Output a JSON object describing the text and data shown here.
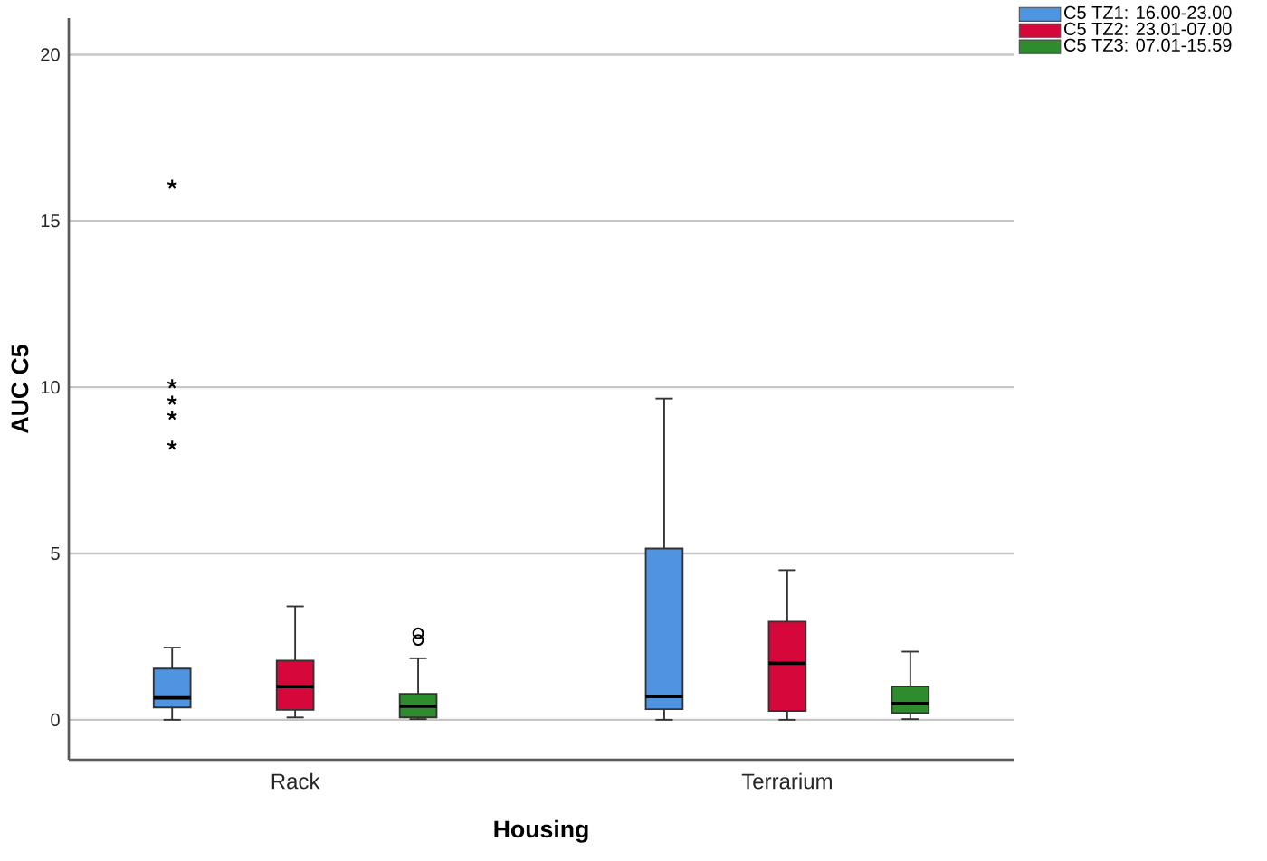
{
  "chart_data": {
    "type": "box",
    "xlabel": "Housing",
    "ylabel": "AUC C5",
    "categories": [
      "Rack",
      "Terrarium"
    ],
    "ylim": [
      -1.2,
      21.1
    ],
    "yticks": [
      0,
      5,
      10,
      15,
      20
    ],
    "grid": "y",
    "legend": "top right",
    "series": [
      {
        "name": "C5  TZ1: 16.00-23.00",
        "color": "#4f94e0",
        "boxes": [
          {
            "low": 0,
            "q1": 0.37,
            "median": 0.66,
            "q3": 1.54,
            "high": 2.17,
            "outliers": [
              16.1,
              10.1,
              9.6,
              9.15,
              8.25
            ]
          },
          {
            "low": 0,
            "q1": 0.32,
            "median": 0.7,
            "q3": 5.15,
            "high": 9.66
          }
        ]
      },
      {
        "name": "C5  TZ2: 23.01-07.00",
        "color": "#d6083b",
        "boxes": [
          {
            "low": 0.07,
            "q1": 0.3,
            "median": 1.0,
            "q3": 1.78,
            "high": 3.41
          },
          {
            "low": 0,
            "q1": 0.27,
            "median": 1.7,
            "q3": 2.95,
            "high": 4.5
          }
        ]
      },
      {
        "name": "C5  TZ3: 07.01-15.59",
        "color": "#2e8b2e",
        "boxes": [
          {
            "low": 0.02,
            "q1": 0.07,
            "median": 0.41,
            "q3": 0.78,
            "high": 1.85,
            "outliers": [
              2.6,
              2.4
            ]
          },
          {
            "low": 0.02,
            "q1": 0.2,
            "median": 0.49,
            "q3": 1.0,
            "high": 2.05
          }
        ]
      }
    ]
  }
}
